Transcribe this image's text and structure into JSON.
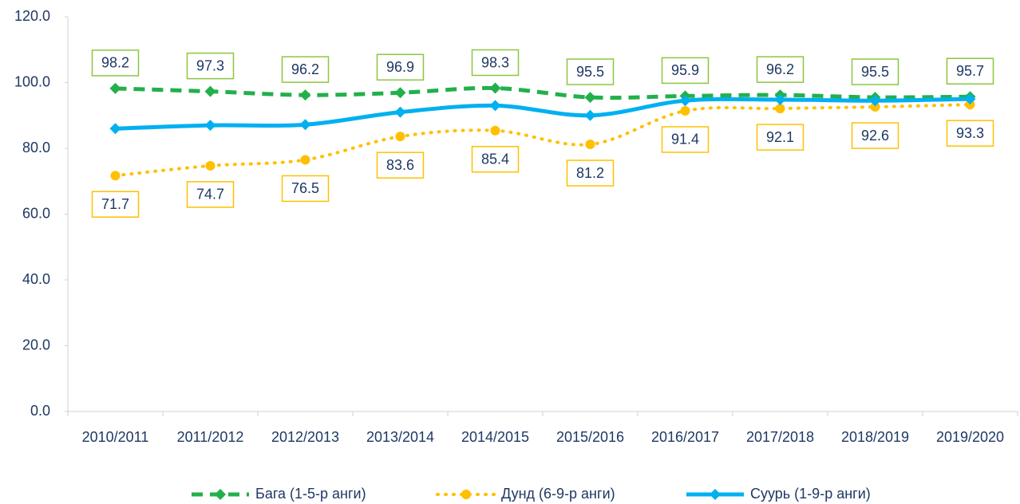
{
  "chart_data": {
    "type": "line",
    "categories": [
      "2010/2011",
      "2011/2012",
      "2012/2013",
      "2013/2014",
      "2014/2015",
      "2015/2016",
      "2016/2017",
      "2017/2018",
      "2018/2019",
      "2019/2020"
    ],
    "series": [
      {
        "name": "Бага (1-5-р анги)",
        "color": "#22b04b",
        "values": [
          98.2,
          97.3,
          96.2,
          96.9,
          98.3,
          95.5,
          95.9,
          96.2,
          95.5,
          95.7
        ]
      },
      {
        "name": "Дунд (6-9-р анги)",
        "color": "#ffc000",
        "values": [
          71.7,
          74.7,
          76.5,
          83.6,
          85.4,
          81.2,
          91.4,
          92.1,
          92.6,
          93.3
        ]
      },
      {
        "name": "Суурь (1-9-р анги)",
        "color": "#00b0f0",
        "values": [
          86.0,
          87.0,
          87.2,
          91.0,
          93.0,
          90.0,
          94.5,
          94.8,
          94.5,
          95.0
        ]
      }
    ],
    "ylim": [
      0,
      120
    ],
    "yticks": [
      {
        "value": 0,
        "label": "0.0"
      },
      {
        "value": 20,
        "label": "20.0"
      },
      {
        "value": 40,
        "label": "40.0"
      },
      {
        "value": 60,
        "label": "60.0"
      },
      {
        "value": 80,
        "label": "80.0"
      },
      {
        "value": 100,
        "label": "100.0"
      },
      {
        "value": 120,
        "label": "120.0"
      }
    ],
    "grid": false,
    "legend": "bottom"
  }
}
